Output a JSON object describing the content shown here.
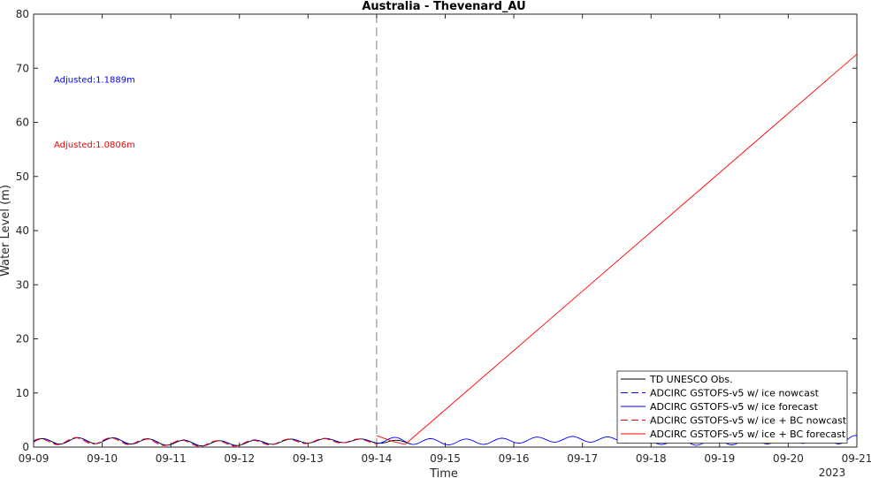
{
  "chart_data": {
    "type": "line",
    "title": "Australia - Thevenard_AU",
    "xlabel": "Time",
    "ylabel": "Water Level (m)",
    "year_label": "2023",
    "x_ticks": [
      "09-09",
      "09-10",
      "09-11",
      "09-12",
      "09-13",
      "09-14",
      "09-15",
      "09-16",
      "09-17",
      "09-18",
      "09-19",
      "09-20",
      "09-21"
    ],
    "x_range": [
      "2023-09-09 00:00",
      "2023-09-21 00:00"
    ],
    "ylim": [
      0,
      80
    ],
    "y_ticks": [
      0,
      10,
      20,
      30,
      40,
      50,
      60,
      70,
      80
    ],
    "nowcast_forecast_divider": "2023-09-14 00:00",
    "grid": false,
    "legend_position": "bottom-right",
    "annotations": [
      {
        "text": "Adjusted:1.1889m",
        "color": "#0000ff",
        "y": 68
      },
      {
        "text": "Adjusted:1.0806m",
        "color": "#ff0000",
        "y": 56
      }
    ],
    "series": [
      {
        "name": "TD UNESCO Obs.",
        "color": "#000000",
        "dash": "solid",
        "x_start": "2023-09-09 00:00",
        "x_end": "2023-09-14 12:00",
        "oscillation": {
          "mean": 0.95,
          "amplitude": 0.55,
          "period_hours": 12.4
        }
      },
      {
        "name": "ADCIRC GSTOFS-v5 w/ ice nowcast",
        "color": "#0000ff",
        "dash": "dashed",
        "x_start": "2023-09-09 00:00",
        "x_end": "2023-09-14 00:00",
        "oscillation": {
          "mean": 0.95,
          "amplitude": 0.6,
          "period_hours": 12.4
        }
      },
      {
        "name": "ADCIRC GSTOFS-v5 w/ ice forecast",
        "color": "#0000ff",
        "dash": "solid",
        "x_start": "2023-09-14 00:00",
        "x_end": "2023-09-21 00:00",
        "oscillation": {
          "mean": 1.2,
          "amplitude": 1.0,
          "period_hours": 12.4
        }
      },
      {
        "name": "ADCIRC GSTOFS-v5 w/ ice + BC nowcast",
        "color": "#ff0000",
        "dash": "dashed",
        "x_start": "2023-09-09 00:00",
        "x_end": "2023-09-14 00:00",
        "oscillation": {
          "mean": 0.9,
          "amplitude": 0.6,
          "period_hours": 12.4
        }
      },
      {
        "name": "ADCIRC GSTOFS-v5 w/ ice + BC forecast",
        "color": "#ff0000",
        "dash": "solid",
        "points": [
          [
            "2023-09-14 00:00",
            2.1
          ],
          [
            "2023-09-14 06:00",
            1.0
          ],
          [
            "2023-09-14 10:00",
            0.5
          ],
          [
            "2023-09-21 00:00",
            72.6
          ]
        ]
      }
    ]
  }
}
